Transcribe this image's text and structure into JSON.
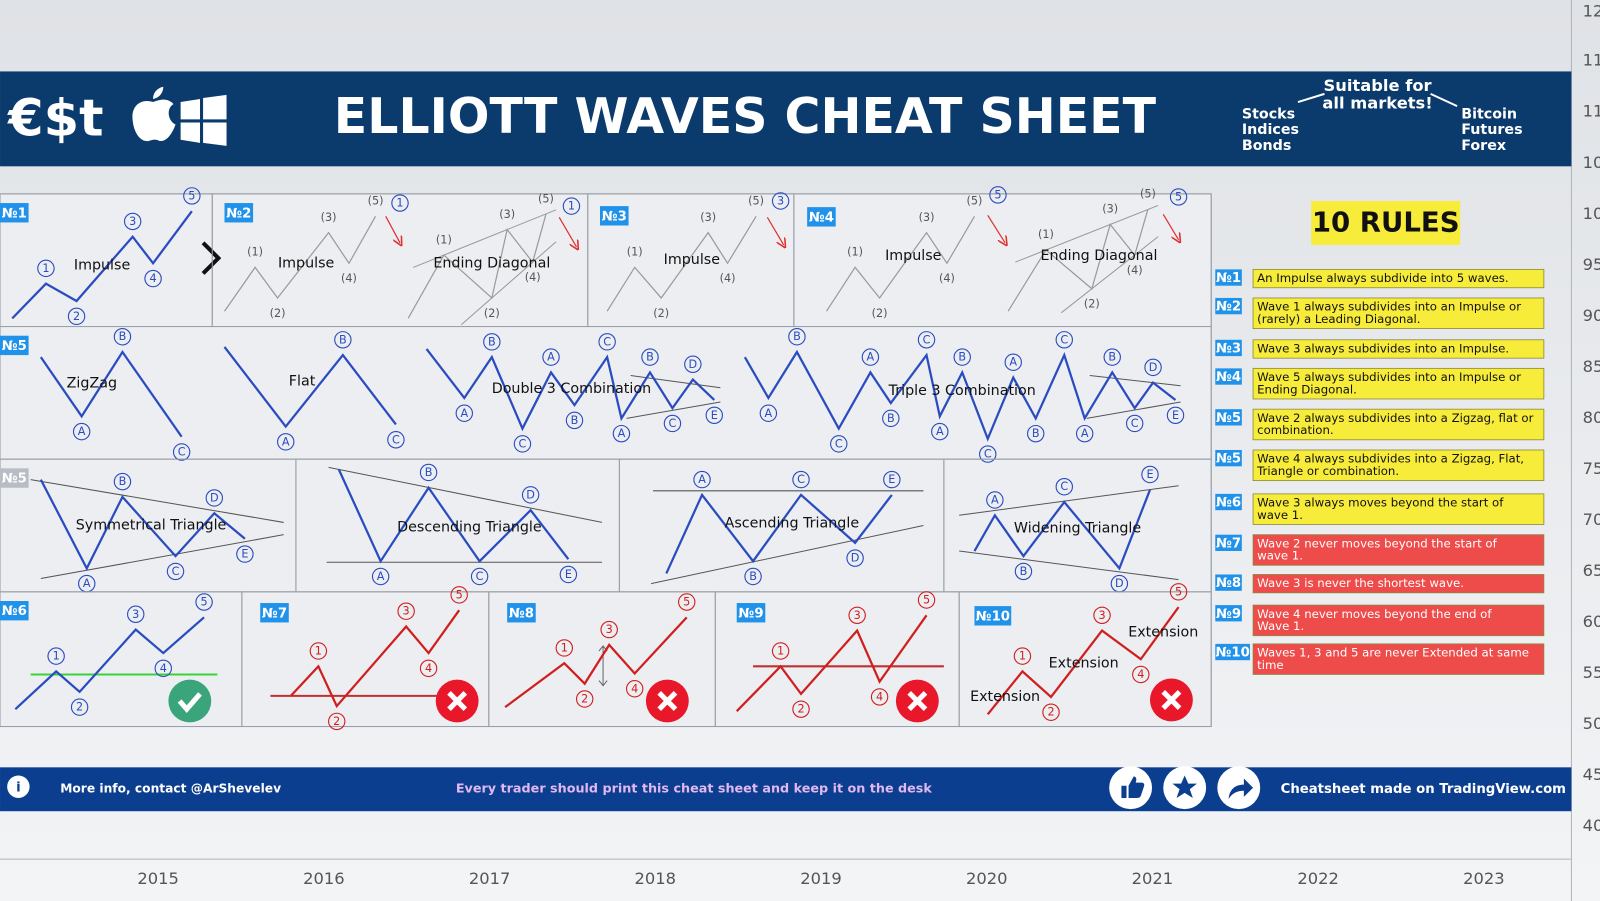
{
  "header": {
    "symbols": "€$t",
    "title": "ELLIOTT WAVES CHEAT SHEET",
    "tagline": [
      "Suitable for",
      "all markets!"
    ],
    "markets_left": [
      "Stocks",
      "Indices",
      "Bonds"
    ],
    "markets_right": [
      "Bitcoin",
      "Futures",
      "Forex"
    ]
  },
  "panels": [
    {
      "badge": "№1",
      "figures": [
        {
          "name": "Impulse",
          "color": "#2a4cc0",
          "labels": [
            "1",
            "2",
            "3",
            "4",
            "5"
          ]
        }
      ]
    },
    {
      "badge": "№2",
      "figures": [
        {
          "name": "Impulse",
          "color": "#9a9a9a",
          "labels": [
            "(1)",
            "(2)",
            "(3)",
            "(4)",
            "(5)"
          ],
          "end": "1"
        },
        {
          "name": "Ending Diagonal",
          "color": "#9a9a9a",
          "labels": [
            "(1)",
            "(2)",
            "(3)",
            "(4)",
            "(5)"
          ],
          "end": "1"
        }
      ]
    },
    {
      "badge": "№3",
      "figures": [
        {
          "name": "Impulse",
          "color": "#9a9a9a",
          "labels": [
            "(1)",
            "(2)",
            "(3)",
            "(4)",
            "(5)"
          ],
          "end": "3"
        }
      ]
    },
    {
      "badge": "№4",
      "figures": [
        {
          "name": "Impulse",
          "color": "#9a9a9a",
          "labels": [
            "(1)",
            "(2)",
            "(3)",
            "(4)",
            "(5)"
          ],
          "end": "5"
        },
        {
          "name": "Ending Diagonal",
          "color": "#9a9a9a",
          "labels": [
            "(1)",
            "(2)",
            "(3)",
            "(4)",
            "(5)"
          ],
          "end": "5"
        }
      ]
    },
    {
      "badge": "№5",
      "figures": [
        {
          "name": "ZigZag",
          "color": "#2a4cc0",
          "labels": [
            "A",
            "B",
            "C"
          ]
        },
        {
          "name": "Flat",
          "color": "#2a4cc0",
          "labels": [
            "A",
            "B",
            "C"
          ]
        },
        {
          "name": "Double 3 Combination",
          "color": "#2a4cc0",
          "labels": [
            "A",
            "B",
            "C",
            "A",
            "B",
            "C",
            "A",
            "B",
            "C",
            "D",
            "E"
          ]
        },
        {
          "name": "Triple 3 Combination",
          "color": "#2a4cc0",
          "labels": [
            "A",
            "B",
            "C",
            "A",
            "B",
            "C",
            "A",
            "B",
            "C",
            "A",
            "B",
            "C",
            "A",
            "B",
            "C",
            "D",
            "E"
          ]
        }
      ]
    },
    {
      "badge": "№5",
      "figures": [
        {
          "name": "Symmetrical Triangle",
          "color": "#2a4cc0",
          "labels": [
            "A",
            "B",
            "C",
            "D",
            "E"
          ]
        }
      ]
    },
    {
      "figures": [
        {
          "name": "Descending Triangle",
          "color": "#2a4cc0",
          "labels": [
            "A",
            "B",
            "C",
            "D",
            "E"
          ]
        }
      ]
    },
    {
      "figures": [
        {
          "name": "Ascending Triangle",
          "color": "#2a4cc0",
          "labels": [
            "A",
            "B",
            "C",
            "D",
            "E"
          ]
        }
      ]
    },
    {
      "figures": [
        {
          "name": "Widening Triangle",
          "color": "#2a4cc0",
          "labels": [
            "A",
            "B",
            "C",
            "D",
            "E"
          ]
        }
      ]
    },
    {
      "badge": "№6",
      "figures": [
        {
          "color": "#2a4cc0",
          "labels": [
            "1",
            "2",
            "3",
            "4",
            "5"
          ]
        }
      ]
    },
    {
      "badge": "№7",
      "figures": [
        {
          "color": "#d01f1f",
          "labels": [
            "1",
            "2",
            "3",
            "4",
            "5"
          ]
        }
      ]
    },
    {
      "badge": "№8",
      "figures": [
        {
          "color": "#d01f1f",
          "labels": [
            "1",
            "2",
            "3",
            "4",
            "5"
          ]
        }
      ]
    },
    {
      "badge": "№9",
      "figures": [
        {
          "color": "#d01f1f",
          "labels": [
            "1",
            "2",
            "3",
            "4",
            "5"
          ]
        }
      ]
    },
    {
      "badge": "№10",
      "figures": [
        {
          "color": "#d01f1f",
          "labels": [
            "1",
            "2",
            "3",
            "4",
            "5"
          ],
          "notes": [
            "Extension",
            "Extension",
            "Extension"
          ]
        }
      ]
    }
  ],
  "rules": {
    "title": "10 RULES",
    "items": [
      {
        "badge": "№1",
        "color": "#f7ec3a",
        "text": [
          "An Impulse always subdivide into 5 waves."
        ]
      },
      {
        "badge": "№2",
        "color": "#f7ec3a",
        "text": [
          "Wave 1 always subdivides into an Impulse or",
          "(rarely) a Leading Diagonal."
        ]
      },
      {
        "badge": "№3",
        "color": "#f7ec3a",
        "text": [
          "Wave 3 always subdivides into an Impulse."
        ]
      },
      {
        "badge": "№4",
        "color": "#f7ec3a",
        "text": [
          "Wave 5 always subdivides into an Impulse or",
          "Ending Diagonal."
        ]
      },
      {
        "badge": "№5",
        "color": "#f7ec3a",
        "text": [
          "Wave 2 always subdivides into a Zigzag, flat or",
          "combination."
        ]
      },
      {
        "badge": "№5",
        "color": "#f7ec3a",
        "text": [
          "Wave 4 always subdivides into a Zigzag, Flat,",
          "Triangle or combination."
        ]
      },
      {
        "badge": "№6",
        "color": "#f7ec3a",
        "text": [
          "Wave 3 always moves beyond the start of",
          "wave 1."
        ]
      },
      {
        "badge": "№7",
        "color": "#ee4b4b",
        "text": [
          "Wave 2 never moves beyond the start of",
          "wave 1."
        ]
      },
      {
        "badge": "№8",
        "color": "#ee4b4b",
        "text": [
          "Wave 3 is never the shortest wave."
        ]
      },
      {
        "badge": "№9",
        "color": "#ee4b4b",
        "text": [
          "Wave 4 never moves beyond the end of",
          "Wave 1."
        ]
      },
      {
        "badge": "№10",
        "color": "#ee4b4b",
        "text": [
          "Waves 1, 3 and 5 are never Extended at same",
          "time"
        ]
      }
    ]
  },
  "footer": {
    "contact": "More info, contact @ArShevelev",
    "message": "Every trader should print this cheat sheet and keep it on the desk",
    "credit": "Cheatsheet made on TradingView.com"
  },
  "price_axis": [
    "12",
    "11",
    "11",
    "10",
    "10",
    "95",
    "90",
    "85",
    "80",
    "75",
    "70",
    "65",
    "60",
    "55",
    "50",
    "45",
    "40"
  ],
  "time_axis": [
    "2015",
    "2016",
    "2017",
    "2018",
    "2019",
    "2020",
    "2021",
    "2022",
    "2023"
  ]
}
